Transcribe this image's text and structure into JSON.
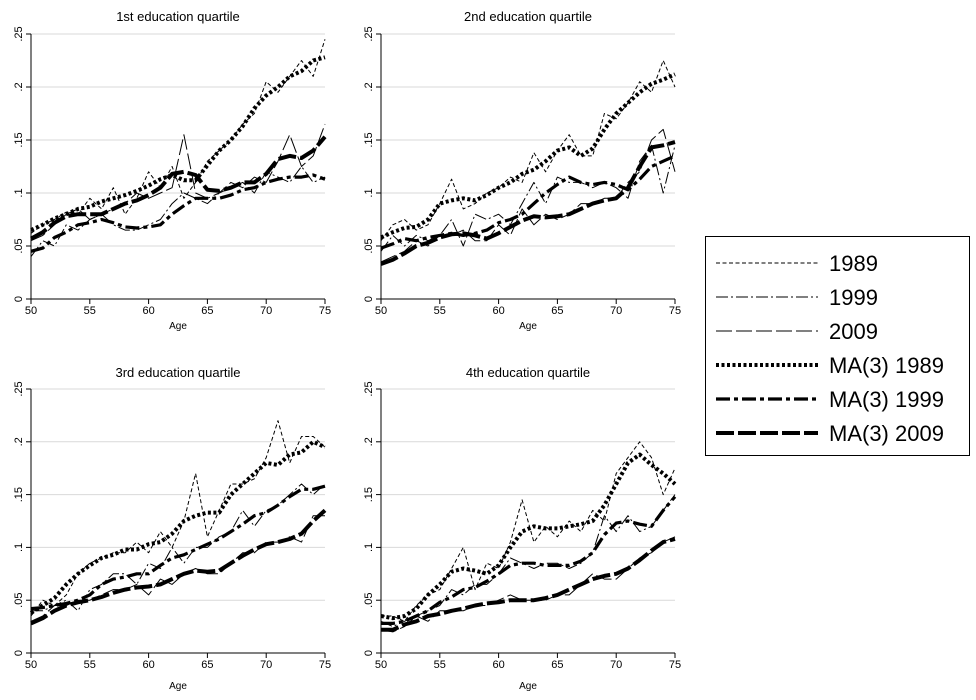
{
  "chart_data": [
    {
      "type": "line",
      "title": "1st education quartile",
      "xlabel": "Age",
      "ylabel": "",
      "xlim": [
        50,
        75
      ],
      "ylim": [
        0,
        0.25
      ],
      "xticks": [
        "50",
        "55",
        "60",
        "65",
        "70",
        "75"
      ],
      "yticks": [
        "0",
        ".05",
        ".1",
        ".15",
        ".2",
        ".25"
      ],
      "grid": true,
      "x": [
        50,
        51,
        52,
        53,
        54,
        55,
        56,
        57,
        58,
        59,
        60,
        61,
        62,
        63,
        64,
        65,
        66,
        67,
        68,
        69,
        70,
        71,
        72,
        73,
        74,
        75
      ],
      "series": [
        {
          "name": "1989",
          "values": [
            0.062,
            0.07,
            0.075,
            0.082,
            0.08,
            0.095,
            0.085,
            0.105,
            0.08,
            0.095,
            0.12,
            0.105,
            0.125,
            0.095,
            0.11,
            0.13,
            0.14,
            0.15,
            0.165,
            0.175,
            0.205,
            0.195,
            0.21,
            0.225,
            0.21,
            0.245
          ]
        },
        {
          "name": "1999",
          "values": [
            0.04,
            0.055,
            0.05,
            0.07,
            0.065,
            0.075,
            0.08,
            0.07,
            0.065,
            0.065,
            0.07,
            0.075,
            0.09,
            0.1,
            0.095,
            0.09,
            0.1,
            0.105,
            0.11,
            0.1,
            0.12,
            0.115,
            0.11,
            0.125,
            0.11,
            0.115
          ]
        },
        {
          "name": "2009",
          "values": [
            0.055,
            0.06,
            0.07,
            0.08,
            0.085,
            0.075,
            0.08,
            0.085,
            0.09,
            0.1,
            0.095,
            0.1,
            0.105,
            0.155,
            0.1,
            0.095,
            0.1,
            0.11,
            0.105,
            0.115,
            0.11,
            0.13,
            0.155,
            0.125,
            0.135,
            0.165
          ]
        },
        {
          "name": "MA(3) 1989",
          "values": [
            0.065,
            0.07,
            0.076,
            0.08,
            0.085,
            0.087,
            0.092,
            0.095,
            0.098,
            0.102,
            0.107,
            0.113,
            0.117,
            0.112,
            0.112,
            0.126,
            0.14,
            0.15,
            0.163,
            0.18,
            0.192,
            0.2,
            0.21,
            0.215,
            0.225,
            0.228
          ]
        },
        {
          "name": "MA(3) 1999",
          "values": [
            0.045,
            0.048,
            0.058,
            0.063,
            0.07,
            0.072,
            0.075,
            0.072,
            0.068,
            0.067,
            0.068,
            0.07,
            0.08,
            0.088,
            0.095,
            0.095,
            0.095,
            0.098,
            0.103,
            0.105,
            0.11,
            0.113,
            0.115,
            0.115,
            0.117,
            0.113
          ]
        },
        {
          "name": "MA(3) 2009",
          "values": [
            0.057,
            0.063,
            0.072,
            0.078,
            0.08,
            0.08,
            0.08,
            0.085,
            0.09,
            0.093,
            0.098,
            0.105,
            0.118,
            0.12,
            0.117,
            0.103,
            0.102,
            0.105,
            0.11,
            0.11,
            0.118,
            0.132,
            0.135,
            0.133,
            0.14,
            0.153
          ]
        }
      ]
    },
    {
      "type": "line",
      "title": "2nd education quartile",
      "xlabel": "Age",
      "ylabel": "",
      "xlim": [
        50,
        75
      ],
      "ylim": [
        0,
        0.25
      ],
      "xticks": [
        "50",
        "55",
        "60",
        "65",
        "70",
        "75"
      ],
      "yticks": [
        "0",
        ".05",
        ".1",
        ".15",
        ".2",
        ".25"
      ],
      "grid": true,
      "x": [
        50,
        51,
        52,
        53,
        54,
        55,
        56,
        57,
        58,
        59,
        60,
        61,
        62,
        63,
        64,
        65,
        66,
        67,
        68,
        69,
        70,
        71,
        72,
        73,
        74,
        75
      ],
      "series": [
        {
          "name": "1989",
          "values": [
            0.055,
            0.07,
            0.075,
            0.065,
            0.07,
            0.09,
            0.113,
            0.085,
            0.09,
            0.1,
            0.105,
            0.115,
            0.11,
            0.138,
            0.12,
            0.14,
            0.155,
            0.135,
            0.135,
            0.175,
            0.17,
            0.185,
            0.205,
            0.195,
            0.225,
            0.2
          ]
        },
        {
          "name": "1999",
          "values": [
            0.045,
            0.06,
            0.05,
            0.06,
            0.055,
            0.06,
            0.075,
            0.05,
            0.08,
            0.075,
            0.08,
            0.07,
            0.09,
            0.11,
            0.09,
            0.115,
            0.11,
            0.11,
            0.105,
            0.11,
            0.105,
            0.095,
            0.13,
            0.145,
            0.1,
            0.145
          ]
        },
        {
          "name": "2009",
          "values": [
            0.035,
            0.04,
            0.045,
            0.055,
            0.05,
            0.06,
            0.06,
            0.065,
            0.055,
            0.055,
            0.07,
            0.06,
            0.085,
            0.07,
            0.08,
            0.075,
            0.08,
            0.09,
            0.09,
            0.095,
            0.095,
            0.11,
            0.12,
            0.15,
            0.16,
            0.12
          ]
        },
        {
          "name": "MA(3) 1989",
          "values": [
            0.058,
            0.063,
            0.067,
            0.068,
            0.075,
            0.09,
            0.093,
            0.095,
            0.093,
            0.098,
            0.105,
            0.11,
            0.118,
            0.122,
            0.13,
            0.14,
            0.143,
            0.135,
            0.142,
            0.16,
            0.175,
            0.185,
            0.195,
            0.203,
            0.207,
            0.212
          ]
        },
        {
          "name": "MA(3) 1999",
          "values": [
            0.048,
            0.052,
            0.057,
            0.055,
            0.058,
            0.06,
            0.062,
            0.06,
            0.062,
            0.065,
            0.072,
            0.075,
            0.08,
            0.09,
            0.1,
            0.108,
            0.115,
            0.11,
            0.108,
            0.11,
            0.108,
            0.103,
            0.113,
            0.125,
            0.13,
            0.135
          ]
        },
        {
          "name": "MA(3) 2009",
          "values": [
            0.033,
            0.037,
            0.043,
            0.05,
            0.053,
            0.058,
            0.061,
            0.062,
            0.06,
            0.057,
            0.062,
            0.068,
            0.074,
            0.078,
            0.077,
            0.078,
            0.08,
            0.085,
            0.09,
            0.093,
            0.095,
            0.105,
            0.125,
            0.143,
            0.145,
            0.148
          ]
        }
      ]
    },
    {
      "type": "line",
      "title": "3rd education quartile",
      "xlabel": "Age",
      "ylabel": "",
      "xlim": [
        50,
        75
      ],
      "ylim": [
        0,
        0.25
      ],
      "xticks": [
        "50",
        "55",
        "60",
        "65",
        "70",
        "75"
      ],
      "yticks": [
        "0",
        ".05",
        ".1",
        ".15",
        ".2",
        ".25"
      ],
      "grid": true,
      "x": [
        50,
        51,
        52,
        53,
        54,
        55,
        56,
        57,
        58,
        59,
        60,
        61,
        62,
        63,
        64,
        65,
        66,
        67,
        68,
        69,
        70,
        71,
        72,
        73,
        74,
        75
      ],
      "series": [
        {
          "name": "1989",
          "values": [
            0.035,
            0.05,
            0.045,
            0.055,
            0.075,
            0.085,
            0.09,
            0.095,
            0.095,
            0.105,
            0.095,
            0.115,
            0.1,
            0.125,
            0.17,
            0.11,
            0.135,
            0.16,
            0.16,
            0.165,
            0.185,
            0.22,
            0.18,
            0.205,
            0.205,
            0.195
          ]
        },
        {
          "name": "1999",
          "values": [
            0.04,
            0.04,
            0.045,
            0.05,
            0.04,
            0.06,
            0.065,
            0.075,
            0.075,
            0.065,
            0.085,
            0.08,
            0.1,
            0.085,
            0.1,
            0.1,
            0.11,
            0.115,
            0.135,
            0.12,
            0.135,
            0.14,
            0.15,
            0.16,
            0.15,
            0.16
          ]
        },
        {
          "name": "2009",
          "values": [
            0.03,
            0.035,
            0.045,
            0.045,
            0.05,
            0.05,
            0.055,
            0.06,
            0.06,
            0.065,
            0.055,
            0.07,
            0.065,
            0.075,
            0.08,
            0.075,
            0.075,
            0.085,
            0.095,
            0.095,
            0.105,
            0.105,
            0.11,
            0.105,
            0.13,
            0.13
          ]
        },
        {
          "name": "MA(3) 1989",
          "values": [
            0.038,
            0.045,
            0.052,
            0.065,
            0.075,
            0.083,
            0.09,
            0.093,
            0.098,
            0.098,
            0.103,
            0.105,
            0.113,
            0.125,
            0.13,
            0.133,
            0.133,
            0.15,
            0.16,
            0.17,
            0.18,
            0.178,
            0.188,
            0.19,
            0.2,
            0.195
          ]
        },
        {
          "name": "MA(3) 1999",
          "values": [
            0.042,
            0.043,
            0.045,
            0.047,
            0.05,
            0.055,
            0.065,
            0.07,
            0.072,
            0.075,
            0.075,
            0.083,
            0.09,
            0.093,
            0.098,
            0.103,
            0.108,
            0.115,
            0.122,
            0.13,
            0.133,
            0.14,
            0.148,
            0.155,
            0.155,
            0.158
          ]
        },
        {
          "name": "MA(3) 2009",
          "values": [
            0.028,
            0.033,
            0.04,
            0.045,
            0.048,
            0.05,
            0.053,
            0.057,
            0.06,
            0.062,
            0.063,
            0.065,
            0.07,
            0.075,
            0.078,
            0.077,
            0.078,
            0.085,
            0.092,
            0.098,
            0.103,
            0.105,
            0.108,
            0.113,
            0.125,
            0.135
          ]
        }
      ]
    },
    {
      "type": "line",
      "title": "4th education quartile",
      "xlabel": "Age",
      "ylabel": "",
      "xlim": [
        50,
        75
      ],
      "ylim": [
        0,
        0.25
      ],
      "xticks": [
        "50",
        "55",
        "60",
        "65",
        "70",
        "75"
      ],
      "yticks": [
        "0",
        ".05",
        ".1",
        ".15",
        ".2",
        ".25"
      ],
      "grid": true,
      "x": [
        50,
        51,
        52,
        53,
        54,
        55,
        56,
        57,
        58,
        59,
        60,
        61,
        62,
        63,
        64,
        65,
        66,
        67,
        68,
        69,
        70,
        71,
        72,
        73,
        74,
        75
      ],
      "series": [
        {
          "name": "1989",
          "values": [
            0.035,
            0.035,
            0.03,
            0.045,
            0.055,
            0.06,
            0.08,
            0.1,
            0.06,
            0.085,
            0.08,
            0.105,
            0.145,
            0.105,
            0.12,
            0.11,
            0.125,
            0.115,
            0.135,
            0.125,
            0.17,
            0.185,
            0.2,
            0.185,
            0.15,
            0.175
          ]
        },
        {
          "name": "1999",
          "values": [
            0.03,
            0.025,
            0.03,
            0.035,
            0.04,
            0.045,
            0.06,
            0.055,
            0.065,
            0.065,
            0.075,
            0.09,
            0.085,
            0.08,
            0.085,
            0.085,
            0.08,
            0.085,
            0.095,
            0.13,
            0.115,
            0.13,
            0.115,
            0.12,
            0.135,
            0.15
          ]
        },
        {
          "name": "2009",
          "values": [
            0.022,
            0.02,
            0.025,
            0.035,
            0.03,
            0.04,
            0.04,
            0.04,
            0.045,
            0.045,
            0.05,
            0.055,
            0.05,
            0.05,
            0.05,
            0.055,
            0.055,
            0.065,
            0.075,
            0.07,
            0.07,
            0.08,
            0.09,
            0.095,
            0.105,
            0.11
          ]
        },
        {
          "name": "MA(3) 1989",
          "values": [
            0.035,
            0.033,
            0.035,
            0.042,
            0.055,
            0.065,
            0.077,
            0.08,
            0.078,
            0.075,
            0.083,
            0.1,
            0.115,
            0.12,
            0.118,
            0.118,
            0.12,
            0.122,
            0.125,
            0.14,
            0.16,
            0.18,
            0.188,
            0.178,
            0.17,
            0.16
          ]
        },
        {
          "name": "MA(3) 1999",
          "values": [
            0.028,
            0.028,
            0.03,
            0.035,
            0.04,
            0.048,
            0.053,
            0.06,
            0.062,
            0.068,
            0.075,
            0.083,
            0.085,
            0.085,
            0.083,
            0.083,
            0.083,
            0.087,
            0.095,
            0.112,
            0.123,
            0.125,
            0.122,
            0.12,
            0.135,
            0.148
          ]
        },
        {
          "name": "MA(3) 2009",
          "values": [
            0.022,
            0.022,
            0.027,
            0.03,
            0.035,
            0.037,
            0.04,
            0.042,
            0.045,
            0.047,
            0.048,
            0.05,
            0.05,
            0.05,
            0.052,
            0.055,
            0.06,
            0.065,
            0.07,
            0.073,
            0.075,
            0.08,
            0.088,
            0.097,
            0.105,
            0.108
          ]
        }
      ]
    }
  ],
  "legend": {
    "entries": [
      "1989",
      "1999",
      "2009",
      "MA(3) 1989",
      "MA(3) 1999",
      "MA(3) 2009"
    ],
    "placement": "right"
  },
  "styles": {
    "line_color": "#000000",
    "grid_color": "#d9d9d9",
    "axis_color": "#000000"
  }
}
